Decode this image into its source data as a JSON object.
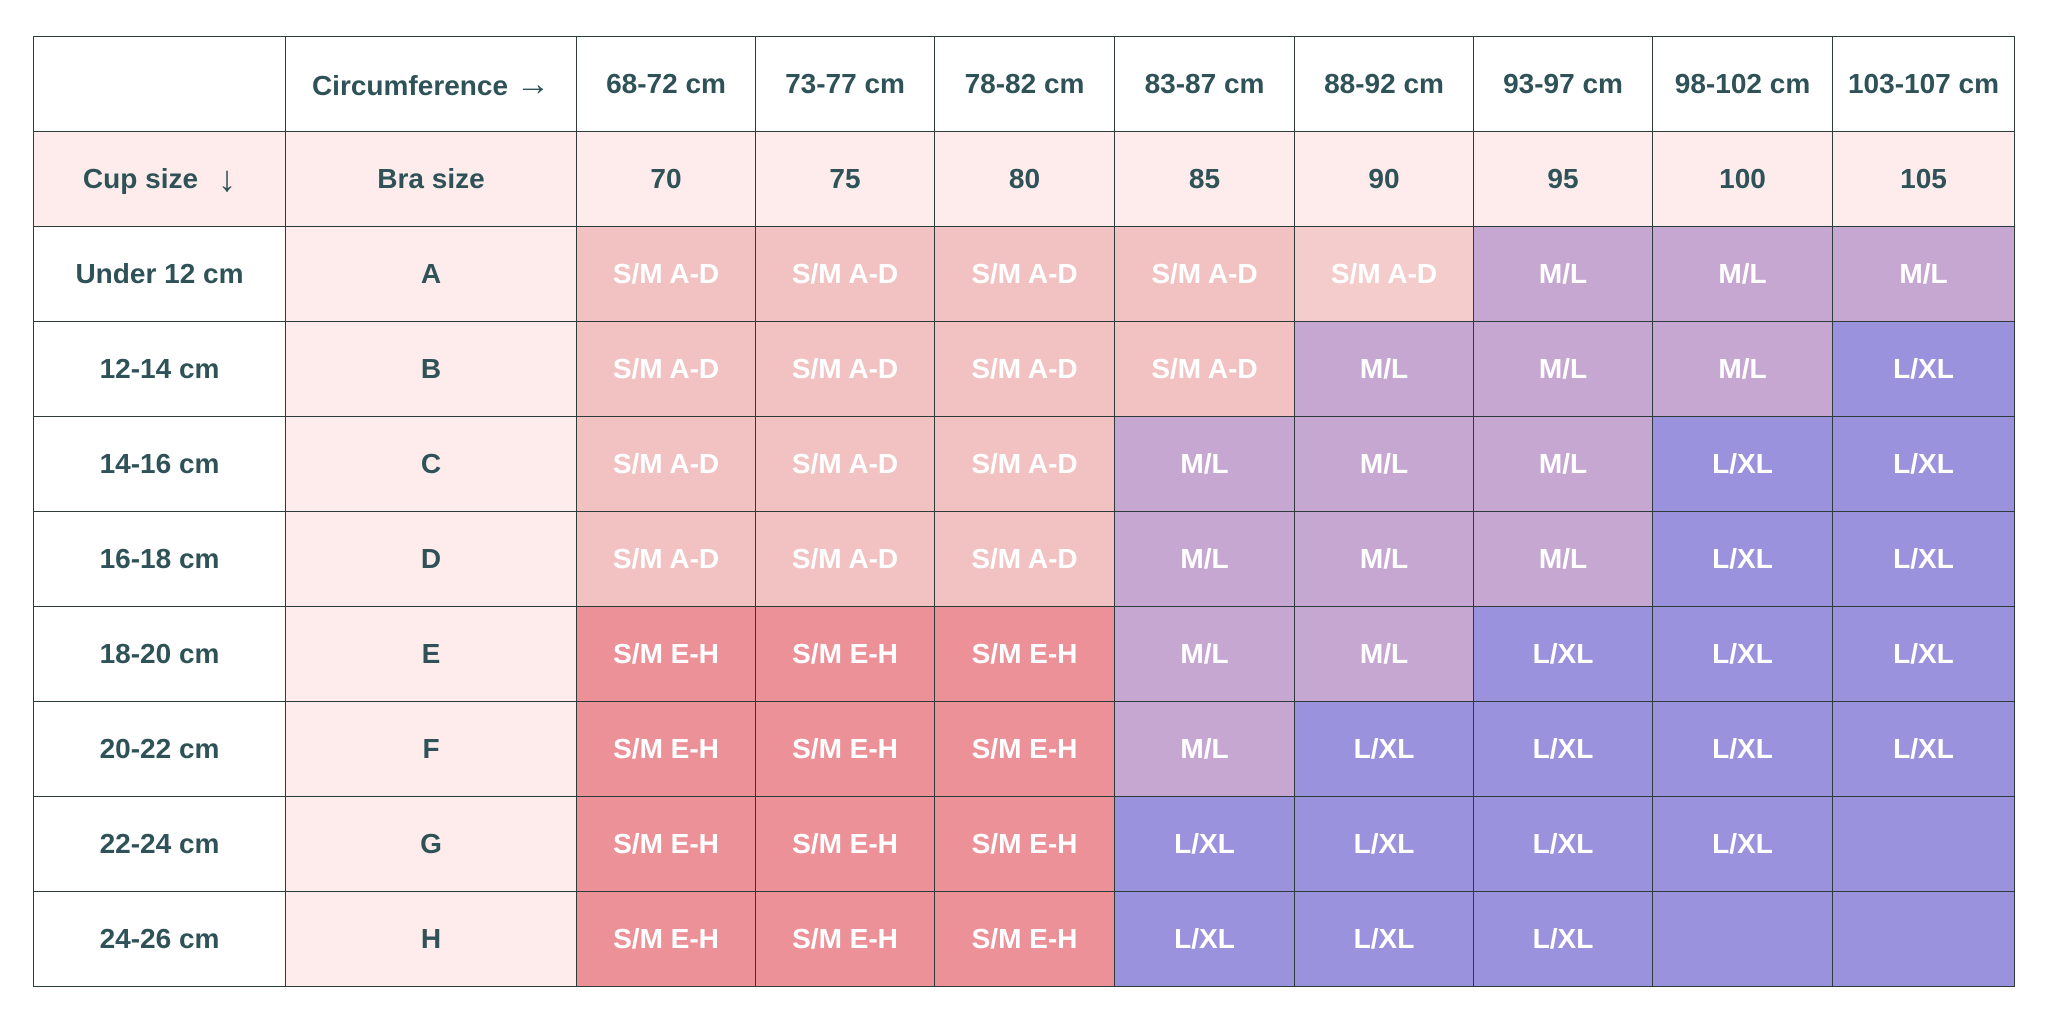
{
  "header": {
    "circumference_label": "Circumference",
    "circumference_arrow": "→",
    "cup_size_label": "Cup size",
    "cup_size_arrow": "↓",
    "bra_size_label": "Bra size",
    "circumferences": [
      "68-72 cm",
      "73-77 cm",
      "78-82 cm",
      "83-87 cm",
      "88-92 cm",
      "93-97 cm",
      "98-102 cm",
      "103-107 cm"
    ],
    "bra_sizes": [
      "70",
      "75",
      "80",
      "85",
      "90",
      "95",
      "100",
      "105"
    ]
  },
  "rows": [
    {
      "cup_size": "Under 12 cm",
      "bra_cup": "A",
      "sizes": [
        "S/M A-D",
        "S/M A-D",
        "S/M A-D",
        "S/M A-D",
        "S/M A-D",
        "M/L",
        "M/L",
        "M/L"
      ]
    },
    {
      "cup_size": "12-14 cm",
      "bra_cup": "B",
      "sizes": [
        "S/M A-D",
        "S/M A-D",
        "S/M A-D",
        "S/M A-D",
        "M/L",
        "M/L",
        "M/L",
        "L/XL"
      ]
    },
    {
      "cup_size": "14-16 cm",
      "bra_cup": "C",
      "sizes": [
        "S/M A-D",
        "S/M A-D",
        "S/M A-D",
        "M/L",
        "M/L",
        "M/L",
        "L/XL",
        "L/XL"
      ]
    },
    {
      "cup_size": "16-18 cm",
      "bra_cup": "D",
      "sizes": [
        "S/M A-D",
        "S/M A-D",
        "S/M A-D",
        "M/L",
        "M/L",
        "M/L",
        "L/XL",
        "L/XL"
      ]
    },
    {
      "cup_size": "18-20 cm",
      "bra_cup": "E",
      "sizes": [
        "S/M E-H",
        "S/M E-H",
        "S/M E-H",
        "M/L",
        "M/L",
        "L/XL",
        "L/XL",
        "L/XL"
      ]
    },
    {
      "cup_size": "20-22 cm",
      "bra_cup": "F",
      "sizes": [
        "S/M E-H",
        "S/M E-H",
        "S/M E-H",
        "M/L",
        "L/XL",
        "L/XL",
        "L/XL",
        "L/XL"
      ]
    },
    {
      "cup_size": "22-24 cm",
      "bra_cup": "G",
      "sizes": [
        "S/M E-H",
        "S/M E-H",
        "S/M E-H",
        "L/XL",
        "L/XL",
        "L/XL",
        "L/XL",
        ""
      ]
    },
    {
      "cup_size": "24-26 cm",
      "bra_cup": "H",
      "sizes": [
        "S/M E-H",
        "S/M E-H",
        "S/M E-H",
        "L/XL",
        "L/XL",
        "L/XL",
        "",
        ""
      ]
    }
  ],
  "colors": {
    "S/M A-D": "#f2c1c2",
    "S/M A-D-alt": "#f4cccc",
    "S/M E-H": "#ec9198",
    "M/L": "#c5a7d2",
    "L/XL": "#9a92dd",
    "empty": "#9a92dd",
    "text": "#2e5257",
    "pink_column": "#fdeceb"
  }
}
